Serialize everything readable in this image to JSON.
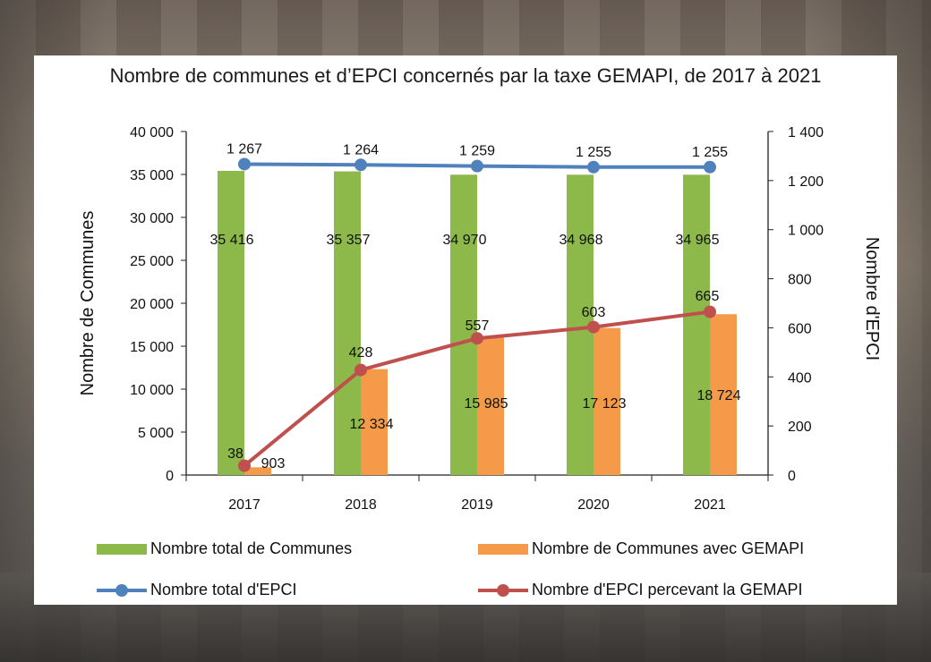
{
  "title": "Nombre de communes et d’EPCI concernés par la taxe GEMAPI, de 2017 à 2021",
  "colors": {
    "green": "#8db84a",
    "orange": "#f59a48",
    "blue": "#4f81bd",
    "red": "#c0504d"
  },
  "legend": {
    "total_communes": "Nombre total de Communes",
    "communes_gemapi": "Nombre de Communes avec GEMAPI",
    "total_epci": "Nombre total d'EPCI",
    "epci_gemapi": "Nombre d'EPCI percevant la GEMAPI"
  },
  "chart_data": {
    "type": "bar",
    "title": "Nombre de communes et d’EPCI concernés par la taxe GEMAPI, de 2017 à 2021",
    "categories": [
      "2017",
      "2018",
      "2019",
      "2020",
      "2021"
    ],
    "ylabel": "Nombre de Communes",
    "y2label": "Nombre d'EPCI",
    "ylim": [
      0,
      40000
    ],
    "y2lim": [
      0,
      1400
    ],
    "yticks": [
      "0",
      "5 000",
      "10 000",
      "15 000",
      "20 000",
      "25 000",
      "30 000",
      "35 000",
      "40 000"
    ],
    "y2ticks": [
      "0",
      "200",
      "400",
      "600",
      "800",
      "1 000",
      "1 200",
      "1 400"
    ],
    "grid": false,
    "legend_position": "bottom",
    "series": [
      {
        "name": "Nombre total de Communes",
        "kind": "bar",
        "axis": "left",
        "values": [
          35416,
          35357,
          34970,
          34968,
          34965
        ],
        "labels": [
          "35 416",
          "35 357",
          "34 970",
          "34 968",
          "34 965"
        ]
      },
      {
        "name": "Nombre de Communes avec GEMAPI",
        "kind": "bar",
        "axis": "left",
        "values": [
          903,
          12334,
          15985,
          17123,
          18724
        ],
        "labels": [
          "903",
          "12 334",
          "15 985",
          "17 123",
          "18 724"
        ]
      },
      {
        "name": "Nombre total d'EPCI",
        "kind": "line",
        "axis": "right",
        "values": [
          1267,
          1264,
          1259,
          1255,
          1255
        ],
        "labels": [
          "1 267",
          "1 264",
          "1 259",
          "1 255",
          "1 255"
        ]
      },
      {
        "name": "Nombre d'EPCI percevant la GEMAPI",
        "kind": "line",
        "axis": "right",
        "values": [
          38,
          428,
          557,
          603,
          665
        ],
        "labels": [
          "38",
          "428",
          "557",
          "603",
          "665"
        ]
      }
    ]
  }
}
